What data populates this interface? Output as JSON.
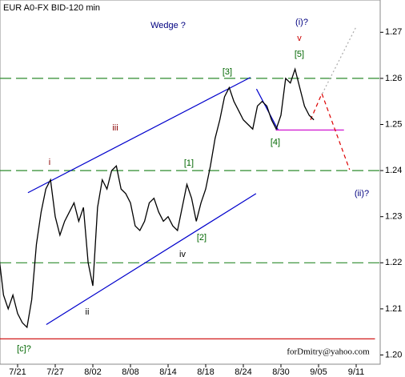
{
  "chart_data": {
    "type": "line",
    "title": "EUR A0-FX BID-120 min",
    "categories": [
      null,
      null,
      null,
      null,
      "7/21",
      null,
      null,
      null,
      null,
      null,
      null,
      null,
      "7/27",
      null,
      null,
      null,
      null,
      null,
      null,
      null,
      "8/02",
      null,
      null,
      null,
      null,
      null,
      null,
      null,
      "8/08",
      null,
      null,
      null,
      null,
      null,
      null,
      null,
      "8/14",
      null,
      null,
      null,
      null,
      null,
      null,
      null,
      "8/18",
      null,
      null,
      null,
      null,
      null,
      null,
      null,
      "8/24",
      null,
      null,
      null,
      null,
      null,
      null,
      null,
      "8/30",
      null,
      null,
      null,
      null,
      null,
      null,
      null,
      "9/05",
      null,
      null,
      null,
      null,
      null,
      null,
      null,
      "9/11",
      null,
      null,
      null,
      null
    ],
    "series": [
      {
        "name": "EUR",
        "color": "#000000",
        "values": [
          1.2217,
          1.213,
          1.21,
          1.213,
          1.209,
          1.207,
          1.206,
          1.212,
          1.224,
          1.231,
          1.236,
          1.238,
          1.23,
          1.226,
          1.229,
          1.231,
          1.233,
          1.229,
          1.232,
          1.22,
          1.215,
          1.232,
          1.238,
          1.236,
          1.24,
          1.241,
          1.236,
          1.235,
          1.233,
          1.228,
          1.227,
          1.229,
          1.233,
          1.234,
          1.231,
          1.229,
          1.23,
          1.228,
          1.227,
          1.232,
          1.237,
          1.234,
          1.229,
          1.233,
          1.236,
          1.241,
          1.247,
          1.251,
          1.256,
          1.258,
          1.255,
          1.253,
          1.251,
          1.25,
          1.249,
          1.254,
          1.255,
          1.254,
          1.251,
          1.249,
          1.252,
          1.26,
          1.259,
          1.262,
          1.258,
          1.254,
          1.252,
          1.251,
          null,
          null,
          null,
          null,
          null,
          null,
          null,
          null,
          null,
          null,
          null,
          null,
          null
        ]
      }
    ],
    "ylim": [
      1.198,
      1.277
    ],
    "yticks": [
      {
        "value": 1.2,
        "label": "1.20"
      },
      1.21,
      1.22,
      1.23,
      1.24,
      1.25,
      1.26,
      1.27
    ],
    "levels": {
      "color": "#2e8b2e",
      "values": [
        1.26,
        1.24,
        1.22
      ]
    },
    "lines": [
      {
        "color": "#0000cc",
        "style": "solid",
        "x": [
          6.2,
          53.5
        ],
        "y": [
          1.2352,
          1.2602
        ]
      },
      {
        "color": "#0000cc",
        "style": "solid",
        "x": [
          10.1,
          54.7
        ],
        "y": [
          1.2066,
          1.235
        ]
      },
      {
        "color": "#0000cc",
        "style": "solid",
        "x": [
          54.8,
          59.4
        ],
        "y": [
          1.2577,
          1.2488
        ]
      },
      {
        "color": "#cc00cc",
        "style": "solid",
        "x": [
          58.9,
          73.4
        ],
        "y": [
          1.2488,
          1.2488
        ]
      },
      {
        "color": "#cc0000",
        "style": "solid",
        "x": [
          0,
          80
        ],
        "y": [
          1.2035,
          1.2035
        ]
      },
      {
        "color": "#dd0000",
        "style": "dashed",
        "x": [
          66.3,
          68.7,
          74.6
        ],
        "y": [
          1.251,
          1.2567,
          1.2402
        ]
      },
      {
        "color": "#aaaaaa",
        "style": "dotted",
        "x": [
          68.8,
          75.9
        ],
        "y": [
          1.2567,
          1.271
        ]
      }
    ],
    "annotations": [
      {
        "text": "Wedge ?",
        "color": "#000080"
      },
      {
        "text": "(i)?",
        "color": "#000080"
      },
      {
        "text": "v",
        "color": "#cc0000"
      },
      {
        "text": "[5]",
        "color": "#006600"
      },
      {
        "text": "[3]",
        "color": "#006600"
      },
      {
        "text": "[4]",
        "color": "#006600"
      },
      {
        "text": "[1]",
        "color": "#006600"
      },
      {
        "text": "[2]",
        "color": "#006600"
      },
      {
        "text": "iii",
        "color": "#8b0000"
      },
      {
        "text": "i",
        "color": "#8b0000"
      },
      {
        "text": "ii",
        "color": "#000000"
      },
      {
        "text": "iv",
        "color": "#000000"
      },
      {
        "text": "(ii)?",
        "color": "#000080"
      },
      {
        "text": "[c]?",
        "color": "#006600"
      },
      {
        "text": "forDmitry@yahoo.com",
        "color": "#000000"
      }
    ]
  }
}
